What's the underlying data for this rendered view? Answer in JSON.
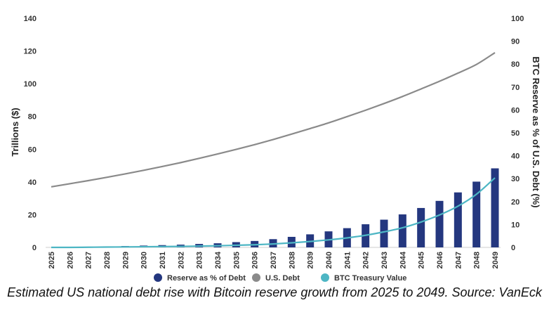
{
  "chart_data": {
    "type": "bar",
    "x": [
      "2025",
      "2026",
      "2027",
      "2028",
      "2029",
      "2030",
      "2031",
      "2032",
      "2033",
      "2034",
      "2035",
      "2036",
      "2037",
      "2038",
      "2039",
      "2040",
      "2041",
      "2042",
      "2043",
      "2044",
      "2045",
      "2046",
      "2047",
      "2048",
      "2049"
    ],
    "series": [
      {
        "name": "Reserve as % of Debt",
        "type": "bar",
        "axis": "right",
        "color": "#24377f",
        "values": [
          0,
          0,
          0,
          0.3,
          0.6,
          0.8,
          1.0,
          1.2,
          1.5,
          1.8,
          2.3,
          2.8,
          3.6,
          4.6,
          5.7,
          7.0,
          8.4,
          10.1,
          12.1,
          14.4,
          17.2,
          20.3,
          24.0,
          28.7,
          34.5
        ]
      },
      {
        "name": "U.S. Debt",
        "type": "line",
        "axis": "left",
        "color": "#8a8a8a",
        "values": [
          37,
          38.9,
          40.8,
          42.8,
          44.9,
          47.1,
          49.4,
          51.8,
          54.4,
          57.1,
          59.9,
          62.8,
          65.9,
          69.2,
          72.6,
          76.1,
          79.9,
          83.8,
          87.9,
          92.2,
          96.8,
          101.5,
          106.5,
          111.8,
          119
        ]
      },
      {
        "name": "BTC Treasury Value",
        "type": "line",
        "axis": "left",
        "color": "#4db6c4",
        "values": [
          0,
          0,
          0.1,
          0.2,
          0.3,
          0.4,
          0.5,
          0.6,
          0.8,
          1.0,
          1.3,
          1.6,
          2.1,
          2.8,
          3.6,
          4.6,
          5.8,
          7.4,
          9.5,
          12.0,
          15.5,
          19.8,
          25.2,
          32.5,
          42.5
        ]
      }
    ],
    "ylabel": "Trillions ($)",
    "y2label": "BTC Reserve as % of U.S. Debt (%)",
    "ylim": [
      0,
      140
    ],
    "y_ticks": [
      "0",
      "20",
      "40",
      "60",
      "80",
      "100",
      "120",
      "140"
    ],
    "y2lim": [
      0,
      100
    ],
    "y2_ticks": [
      "0",
      "10",
      "20",
      "30",
      "40",
      "50",
      "60",
      "70",
      "80",
      "90",
      "100"
    ],
    "legend_position": "bottom",
    "grid": false
  },
  "caption": "Estimated US national debt rise with Bitcoin reserve growth from 2025 to 2049. Source: VanEck"
}
